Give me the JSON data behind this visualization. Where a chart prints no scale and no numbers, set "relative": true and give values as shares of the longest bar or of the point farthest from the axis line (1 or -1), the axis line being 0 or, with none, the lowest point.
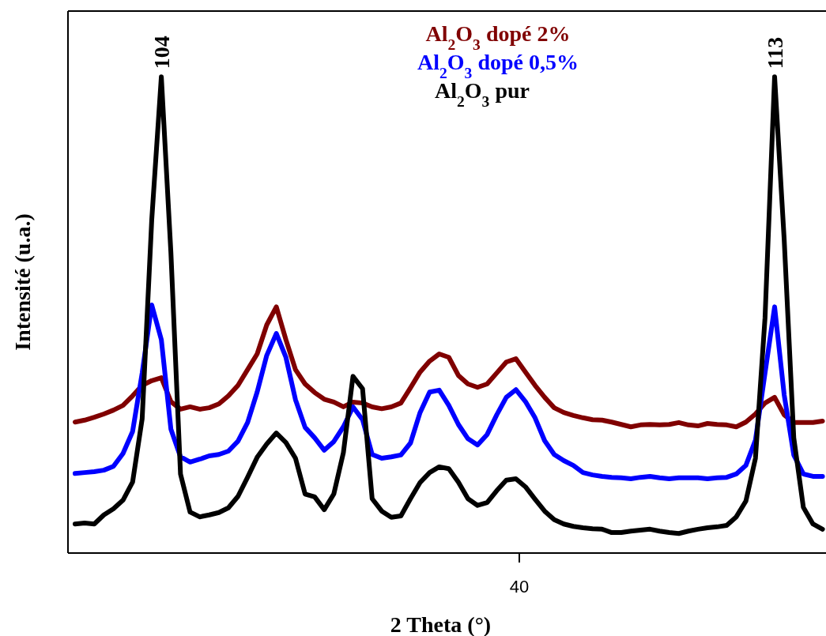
{
  "chart_data": {
    "type": "line",
    "relative": true,
    "xlabel": "2 Theta (°)",
    "ylabel": "Intensité (u.a.)",
    "categories": [
      null,
      null,
      null,
      null,
      null,
      null,
      null,
      null,
      null,
      null,
      null,
      null,
      null,
      null,
      null,
      null,
      null,
      null,
      null,
      null,
      null,
      null,
      null,
      null,
      null,
      null,
      null,
      null,
      null,
      null,
      null,
      null,
      null,
      null,
      null,
      null,
      null,
      null,
      null,
      null,
      null,
      null,
      null,
      null,
      null,
      null,
      null,
      null,
      null,
      null,
      null,
      null,
      null,
      null,
      null,
      null,
      null,
      null,
      null,
      null,
      null,
      null,
      null,
      null,
      null,
      null,
      null,
      null,
      null,
      null,
      null,
      null,
      null,
      null,
      null,
      null,
      null,
      null,
      null
    ],
    "series": [
      {
        "name": "Al$_{2}$O$_{3}$ dopé 2%",
        "color": "#800000",
        "values": [
          0.275,
          0.279,
          0.285,
          0.292,
          0.3,
          0.31,
          0.33,
          0.352,
          0.362,
          0.368,
          0.318,
          0.302,
          0.307,
          0.302,
          0.305,
          0.313,
          0.33,
          0.352,
          0.385,
          0.418,
          0.479,
          0.517,
          0.448,
          0.385,
          0.355,
          0.337,
          0.323,
          0.317,
          0.307,
          0.317,
          0.315,
          0.307,
          0.303,
          0.307,
          0.315,
          0.347,
          0.38,
          0.403,
          0.418,
          0.411,
          0.373,
          0.355,
          0.348,
          0.355,
          0.378,
          0.401,
          0.408,
          0.38,
          0.352,
          0.327,
          0.305,
          0.295,
          0.289,
          0.284,
          0.28,
          0.279,
          0.275,
          0.27,
          0.265,
          0.269,
          0.27,
          0.269,
          0.27,
          0.274,
          0.269,
          0.267,
          0.272,
          0.27,
          0.269,
          0.265,
          0.275,
          0.292,
          0.315,
          0.327,
          0.29,
          0.274,
          0.274,
          0.274,
          0.277
        ]
      },
      {
        "name": "Al$_{2}$O$_{3}$ dopé 0,5%",
        "color": "#0000ff",
        "values": [
          0.167,
          0.169,
          0.171,
          0.174,
          0.182,
          0.209,
          0.255,
          0.378,
          0.521,
          0.448,
          0.26,
          0.202,
          0.191,
          0.197,
          0.204,
          0.207,
          0.214,
          0.235,
          0.274,
          0.338,
          0.415,
          0.461,
          0.411,
          0.322,
          0.264,
          0.242,
          0.216,
          0.234,
          0.265,
          0.307,
          0.28,
          0.207,
          0.199,
          0.202,
          0.206,
          0.231,
          0.295,
          0.338,
          0.342,
          0.31,
          0.27,
          0.24,
          0.227,
          0.249,
          0.29,
          0.327,
          0.343,
          0.318,
          0.284,
          0.236,
          0.207,
          0.194,
          0.184,
          0.169,
          0.164,
          0.161,
          0.159,
          0.158,
          0.156,
          0.159,
          0.161,
          0.158,
          0.156,
          0.158,
          0.158,
          0.158,
          0.156,
          0.158,
          0.159,
          0.166,
          0.184,
          0.237,
          0.378,
          0.517,
          0.332,
          0.206,
          0.166,
          0.161,
          0.161
        ]
      },
      {
        "name": "Al$_{2}$O$_{3}$ pur",
        "color": "#000000",
        "values": [
          0.061,
          0.063,
          0.061,
          0.08,
          0.093,
          0.111,
          0.149,
          0.282,
          0.7,
          1.0,
          0.63,
          0.166,
          0.086,
          0.076,
          0.08,
          0.085,
          0.095,
          0.119,
          0.159,
          0.201,
          0.229,
          0.252,
          0.232,
          0.199,
          0.124,
          0.118,
          0.091,
          0.124,
          0.211,
          0.371,
          0.345,
          0.114,
          0.088,
          0.075,
          0.078,
          0.114,
          0.148,
          0.169,
          0.181,
          0.177,
          0.149,
          0.114,
          0.1,
          0.106,
          0.131,
          0.153,
          0.156,
          0.139,
          0.113,
          0.088,
          0.07,
          0.061,
          0.056,
          0.053,
          0.051,
          0.05,
          0.043,
          0.043,
          0.046,
          0.048,
          0.05,
          0.046,
          0.043,
          0.041,
          0.046,
          0.05,
          0.053,
          0.055,
          0.058,
          0.076,
          0.109,
          0.199,
          0.494,
          1.0,
          0.658,
          0.242,
          0.096,
          0.061,
          0.05
        ]
      }
    ],
    "annotations": [
      "104",
      "113",
      "40"
    ]
  }
}
